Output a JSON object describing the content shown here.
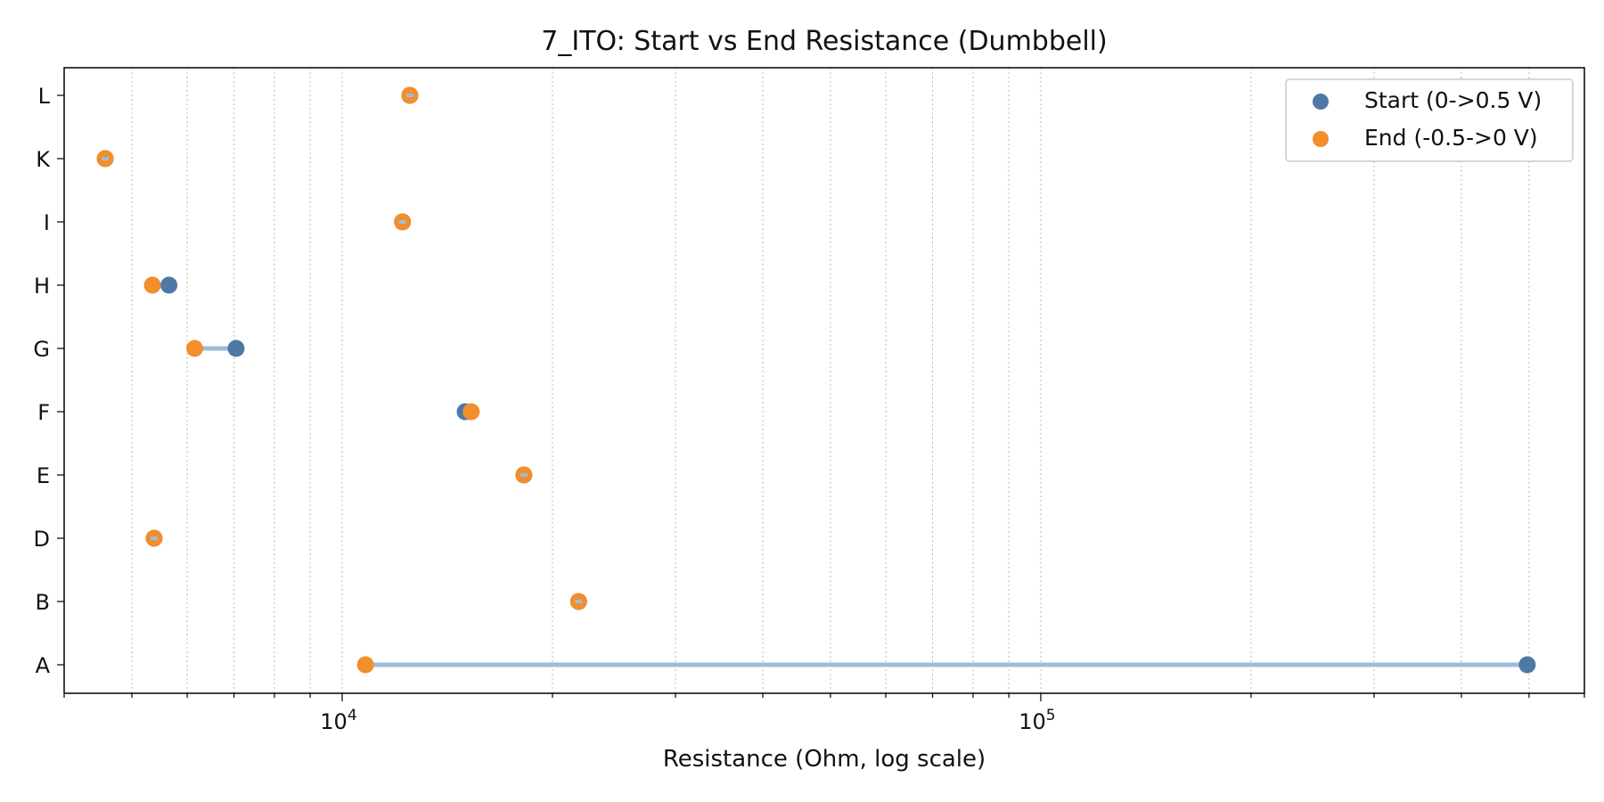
{
  "chart_data": {
    "type": "scatter",
    "title": "7_ITO: Start vs End Resistance (Dumbbell)",
    "xlabel": "Resistance (Ohm, log scale)",
    "ylabel": "",
    "x_scale": "log",
    "xlim": [
      4000,
      600000
    ],
    "x_major_ticks": [
      {
        "value": 10000,
        "base": "10",
        "exp": "4"
      },
      {
        "value": 100000,
        "base": "10",
        "exp": "5"
      }
    ],
    "grid": "x-axis minor and major, dotted",
    "categories": [
      "A",
      "B",
      "D",
      "E",
      "F",
      "G",
      "H",
      "I",
      "K",
      "L"
    ],
    "series": [
      {
        "name": "Start (0->0.5 V)",
        "color": "#4e79a7",
        "values": [
          497000,
          21800,
          5380,
          18200,
          15000,
          7050,
          5650,
          12200,
          4580,
          12500
        ]
      },
      {
        "name": "End (-0.5->0 V)",
        "color": "#f28e2b",
        "values": [
          10800,
          21800,
          5380,
          18200,
          15300,
          6150,
          5350,
          12200,
          4580,
          12500
        ]
      }
    ],
    "connector_color": "#9dbcdb",
    "legend_position": "top-right"
  }
}
